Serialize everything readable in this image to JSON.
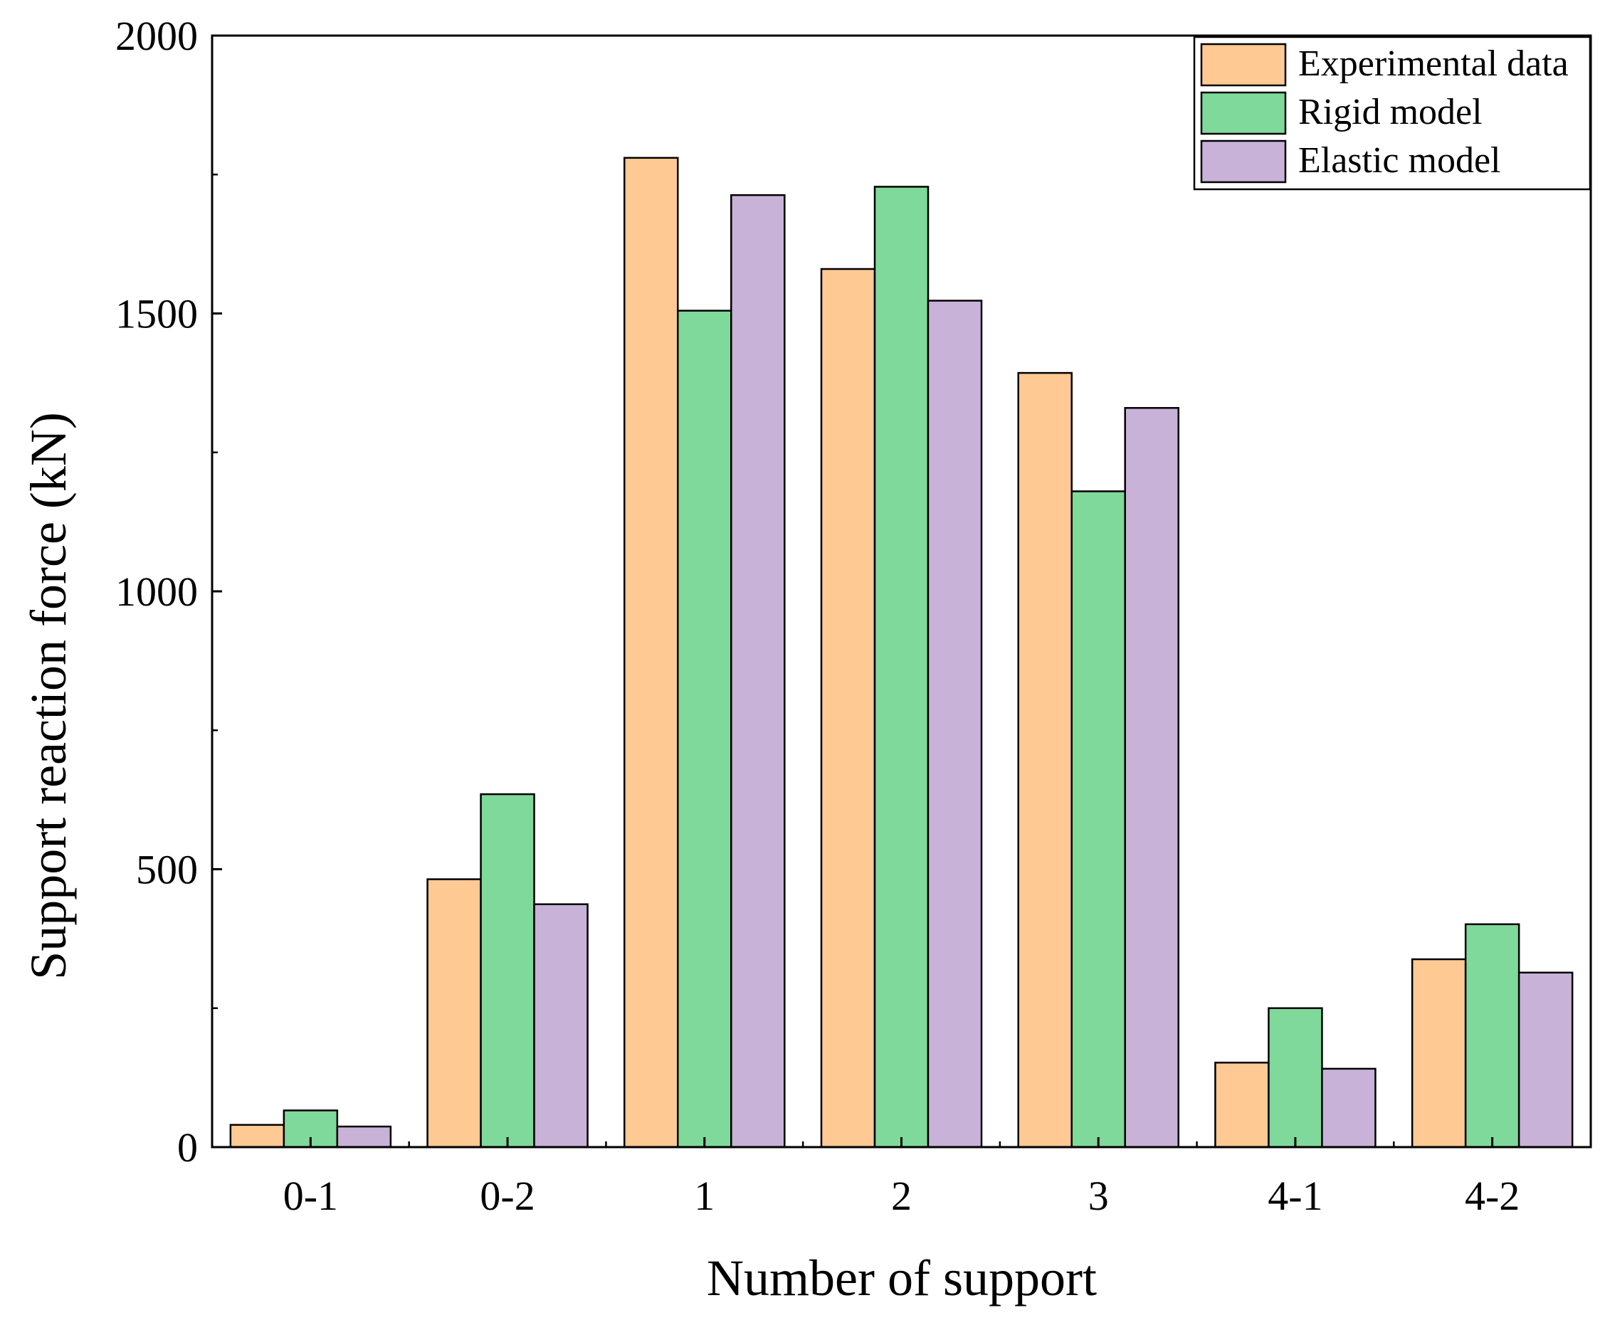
{
  "chart_data": {
    "type": "bar",
    "categories": [
      "0-1",
      "0-2",
      "1",
      "2",
      "3",
      "4-1",
      "4-2"
    ],
    "series": [
      {
        "name": "Experimental data",
        "color": "#FFC994",
        "values": [
          40,
          482,
          1780,
          1580,
          1393,
          152,
          338
        ]
      },
      {
        "name": "Rigid model",
        "color": "#7FD99A",
        "values": [
          66,
          635,
          1505,
          1728,
          1180,
          250,
          401
        ]
      },
      {
        "name": "Elastic model",
        "color": "#C9B2D8",
        "values": [
          37,
          437,
          1713,
          1523,
          1330,
          141,
          314
        ]
      }
    ],
    "title": "",
    "xlabel": "Number of support",
    "ylabel": "Support reaction force (kN)",
    "ylim": [
      0,
      2000
    ],
    "yticks": [
      0,
      500,
      1000,
      1500,
      2000
    ],
    "grid": false,
    "legend_position": "top-right"
  }
}
